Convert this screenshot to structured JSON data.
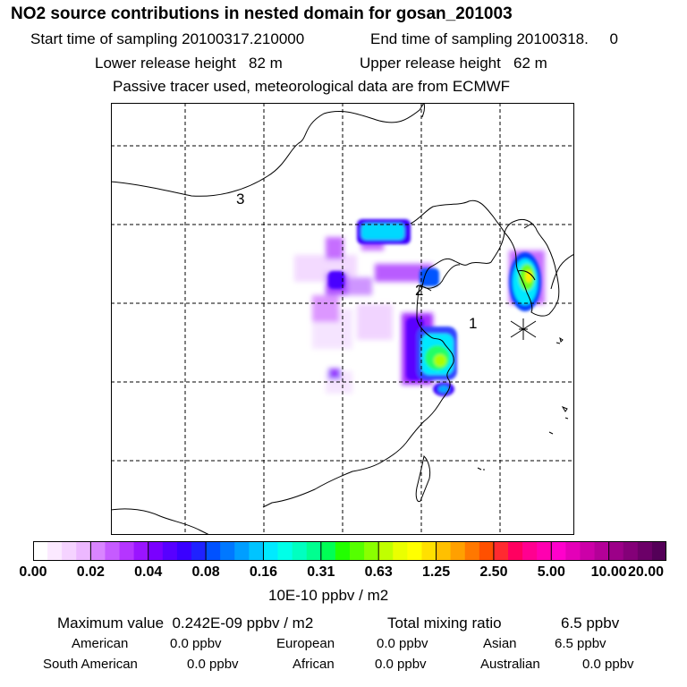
{
  "header": {
    "title": "NO2 source contributions in nested domain for gosan_201003",
    "start_label": "Start time of sampling 20100317.210000",
    "end_label": "End time of sampling 20100318.     0",
    "lower_label": "Lower release height   82 m",
    "upper_label": "Upper release height   62 m",
    "note": "Passive tracer used, meteorological data are from ECMWF"
  },
  "map": {
    "region_labels": [
      "3",
      "2",
      "1"
    ],
    "receptor_marker": "asterisk-icon"
  },
  "chart_data": {
    "type": "heatmap",
    "title": "NO2 source contributions in nested domain for gosan_201003",
    "colorbar": {
      "ticks": [
        "0.00",
        "0.02",
        "0.04",
        "0.08",
        "0.16",
        "0.31",
        "0.63",
        "1.25",
        "2.50",
        "5.00",
        "10.00",
        "20.00"
      ],
      "unit_label": "10E-10 ppbv / m2",
      "colors": [
        "#ffffff",
        "#fbe9ff",
        "#f5d3ff",
        "#ecb8ff",
        "#d985ff",
        "#c65bff",
        "#b535ff",
        "#9a14ff",
        "#7a00ff",
        "#5700ff",
        "#3a00ff",
        "#1f22ff",
        "#0052ff",
        "#0078ff",
        "#009eff",
        "#00c4ff",
        "#00eaff",
        "#00ffe8",
        "#00ffc0",
        "#00ff90",
        "#00ff55",
        "#22ff00",
        "#55ff00",
        "#8aff00",
        "#c0ff00",
        "#eaff00",
        "#ffff00",
        "#ffe000",
        "#ffc000",
        "#ffa000",
        "#ff7800",
        "#ff5000",
        "#ff2a30",
        "#ff0060",
        "#ff0090",
        "#ff00b0",
        "#ff00cc",
        "#e400b8",
        "#cc00a8",
        "#b40098",
        "#9c0088",
        "#840078",
        "#6c0068",
        "#540058"
      ]
    },
    "hotspots": [
      {
        "lon": 117.3,
        "lat": 39.6,
        "level": "0.16"
      },
      {
        "lon": 119.1,
        "lat": 36.9,
        "level": "0.08"
      },
      {
        "lon": 119.6,
        "lat": 32.0,
        "level": "1.25"
      },
      {
        "lon": 120.5,
        "lat": 30.4,
        "level": "0.08"
      },
      {
        "lon": 126.8,
        "lat": 36.8,
        "level": "2.50"
      },
      {
        "lon": 113.5,
        "lat": 36.5,
        "level": "0.04"
      },
      {
        "lon": 113.5,
        "lat": 32.5,
        "level": "0.04"
      }
    ]
  },
  "stats": {
    "max_label": "Maximum value  0.242E-09 ppbv / m2",
    "total_label": "Total mixing ratio",
    "total_value": "6.5 ppbv",
    "regions": [
      {
        "name": "American",
        "value": "0.0 ppbv"
      },
      {
        "name": "European",
        "value": "0.0 ppbv"
      },
      {
        "name": "Asian",
        "value": "6.5 ppbv"
      },
      {
        "name": "South American",
        "value": "0.0 ppbv"
      },
      {
        "name": "African",
        "value": "0.0 ppbv"
      },
      {
        "name": "Australian",
        "value": "0.0 ppbv"
      }
    ]
  }
}
